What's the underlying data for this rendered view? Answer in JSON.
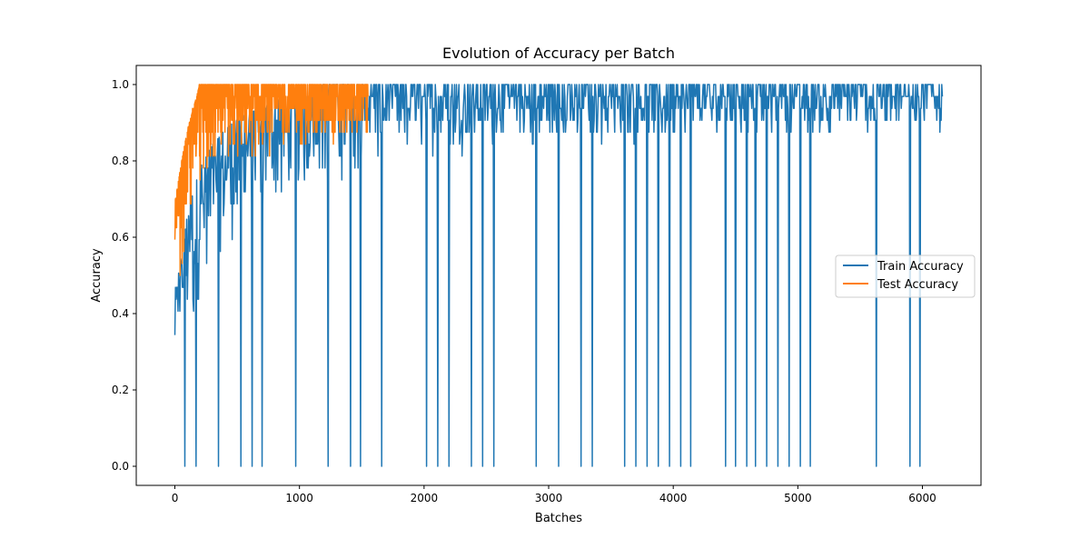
{
  "chart_data": {
    "type": "line",
    "title": "Evolution of Accuracy per Batch",
    "xlabel": "Batches",
    "ylabel": "Accuracy",
    "xlim": [
      -310,
      6470
    ],
    "ylim": [
      -0.05,
      1.05
    ],
    "xticks": [
      0,
      1000,
      2000,
      3000,
      4000,
      5000,
      6000
    ],
    "yticks": [
      0.0,
      0.2,
      0.4,
      0.6,
      0.8,
      1.0
    ],
    "xtick_labels": [
      "0",
      "1000",
      "2000",
      "3000",
      "4000",
      "5000",
      "6000"
    ],
    "ytick_labels": [
      "0.0",
      "0.2",
      "0.4",
      "0.6",
      "0.8",
      "1.0"
    ],
    "legend_position": "center-right",
    "series": [
      {
        "name": "Train Accuracy",
        "color": "#1f77b4",
        "x_max": 6160,
        "band": [
          [
            0,
            0.19,
            0.47
          ],
          [
            50,
            0.34,
            0.53
          ],
          [
            100,
            0.31,
            0.66
          ],
          [
            150,
            0.31,
            0.72
          ],
          [
            200,
            0.44,
            0.78
          ],
          [
            300,
            0.53,
            0.84
          ],
          [
            400,
            0.56,
            0.88
          ],
          [
            500,
            0.59,
            0.91
          ],
          [
            700,
            0.66,
            0.94
          ],
          [
            900,
            0.69,
            0.97
          ],
          [
            1200,
            0.72,
            1.0
          ],
          [
            1550,
            0.78,
            1.0
          ],
          [
            2000,
            0.81,
            1.0
          ],
          [
            3000,
            0.84,
            1.0
          ],
          [
            4000,
            0.84,
            1.0
          ],
          [
            5000,
            0.87,
            1.0
          ],
          [
            6160,
            0.87,
            1.0
          ]
        ],
        "drop_batches": [
          80,
          170,
          350,
          530,
          620,
          700,
          970,
          1230,
          1410,
          1490,
          1660,
          2020,
          2110,
          2200,
          2380,
          2470,
          2560,
          2900,
          3080,
          3260,
          3350,
          3610,
          3700,
          3790,
          3880,
          3970,
          4060,
          4140,
          4420,
          4500,
          4590,
          4660,
          4750,
          4840,
          4930,
          5020,
          5100,
          5630,
          5900,
          5980
        ]
      },
      {
        "name": "Test Accuracy",
        "color": "#ff7f0e",
        "x_max": 1550,
        "band": [
          [
            0,
            0.38,
            0.69
          ],
          [
            30,
            0.44,
            0.75
          ],
          [
            60,
            0.53,
            0.81
          ],
          [
            100,
            0.62,
            0.88
          ],
          [
            150,
            0.66,
            0.94
          ],
          [
            200,
            0.72,
            1.0
          ],
          [
            400,
            0.78,
            1.0
          ],
          [
            700,
            0.81,
            1.0
          ],
          [
            1000,
            0.84,
            1.0
          ],
          [
            1550,
            0.84,
            1.0
          ]
        ]
      }
    ]
  }
}
